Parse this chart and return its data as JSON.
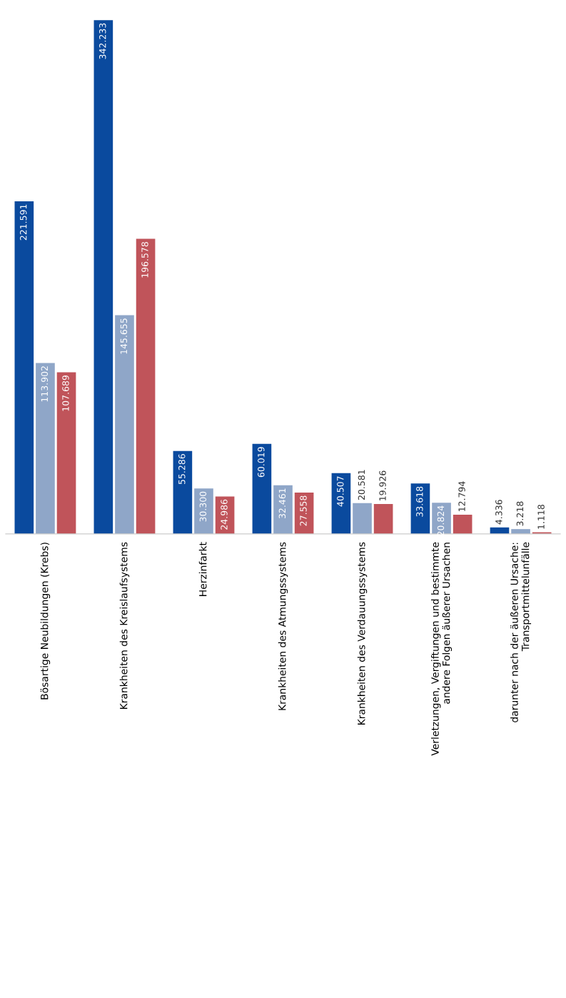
{
  "chart_data": {
    "type": "bar",
    "categories": [
      "Bösartige Neubildungen (Krebs)",
      "Krankheiten des Kreislaufsystems",
      "Herzinfarkt",
      "Krankheiten des Atmungssystems",
      "Krankheiten des Verdauungssystems",
      "Verletzungen, Vergiftungen und bestimmte\nandere Folgen äußerer Ursachen",
      "darunter nach der äußeren Ursache:\nTransportmittelunfälle"
    ],
    "series": [
      {
        "color": "#0a4a9e",
        "values": [
          221591,
          342233,
          55286,
          60019,
          40507,
          33618,
          4336
        ],
        "value_labels": [
          "221.591",
          "342.233",
          "55.286",
          "60.019",
          "40.507",
          "33.618",
          "4.336"
        ]
      },
      {
        "color": "#8fa6c8",
        "values": [
          113902,
          145655,
          30300,
          32461,
          20581,
          20824,
          3218
        ],
        "value_labels": [
          "113.902",
          "145.655",
          "30.300",
          "32.461",
          "20.581",
          "20.824",
          "3.218"
        ]
      },
      {
        "color": "#c0545a",
        "values": [
          107689,
          196578,
          24986,
          27558,
          19926,
          12794,
          1118
        ],
        "value_labels": [
          "107.689",
          "196.578",
          "24.986",
          "27.558",
          "19.926",
          "12.794",
          "1.118"
        ]
      }
    ],
    "tick_labels": "x",
    "grid": false,
    "legend": false
  }
}
